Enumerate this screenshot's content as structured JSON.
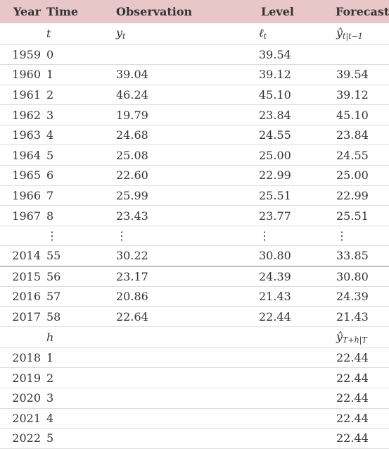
{
  "headers": {
    "year": "Year",
    "time": "Time",
    "observation": "Observation",
    "level": "Level",
    "forecast": "Forecast"
  },
  "symbols": {
    "time": "t",
    "observation": "y",
    "observation_sub": "t",
    "level": "ℓ",
    "level_sub": "t",
    "forecast": "ŷ",
    "forecast_sub": "t|t−1",
    "horizon": "h",
    "future_forecast": "ŷ",
    "future_forecast_sub": "T+h|T"
  },
  "rows": [
    {
      "year": "1959",
      "time": "0",
      "obs": "",
      "level": "39.54",
      "forecast": ""
    },
    {
      "year": "1960",
      "time": "1",
      "obs": "39.04",
      "level": "39.12",
      "forecast": "39.54"
    },
    {
      "year": "1961",
      "time": "2",
      "obs": "46.24",
      "level": "45.10",
      "forecast": "39.12"
    },
    {
      "year": "1962",
      "time": "3",
      "obs": "19.79",
      "level": "23.84",
      "forecast": "45.10"
    },
    {
      "year": "1963",
      "time": "4",
      "obs": "24.68",
      "level": "24.55",
      "forecast": "23.84"
    },
    {
      "year": "1964",
      "time": "5",
      "obs": "25.08",
      "level": "25.00",
      "forecast": "24.55"
    },
    {
      "year": "1965",
      "time": "6",
      "obs": "22.60",
      "level": "22.99",
      "forecast": "25.00"
    },
    {
      "year": "1966",
      "time": "7",
      "obs": "25.99",
      "level": "25.51",
      "forecast": "22.99"
    },
    {
      "year": "1967",
      "time": "8",
      "obs": "23.43",
      "level": "23.77",
      "forecast": "25.51"
    }
  ],
  "ellipsis": "⋮",
  "rows_late": [
    {
      "year": "2014",
      "time": "55",
      "obs": "30.22",
      "level": "30.80",
      "forecast": "33.85"
    },
    {
      "year": "2015",
      "time": "56",
      "obs": "23.17",
      "level": "24.39",
      "forecast": "30.80"
    },
    {
      "year": "2016",
      "time": "57",
      "obs": "20.86",
      "level": "21.43",
      "forecast": "24.39"
    },
    {
      "year": "2017",
      "time": "58",
      "obs": "22.64",
      "level": "22.44",
      "forecast": "21.43"
    }
  ],
  "forecast_rows": [
    {
      "year": "2018",
      "h": "1",
      "forecast": "22.44"
    },
    {
      "year": "2019",
      "h": "2",
      "forecast": "22.44"
    },
    {
      "year": "2020",
      "h": "3",
      "forecast": "22.44"
    },
    {
      "year": "2021",
      "h": "4",
      "forecast": "22.44"
    },
    {
      "year": "2022",
      "h": "5",
      "forecast": "22.44"
    }
  ]
}
